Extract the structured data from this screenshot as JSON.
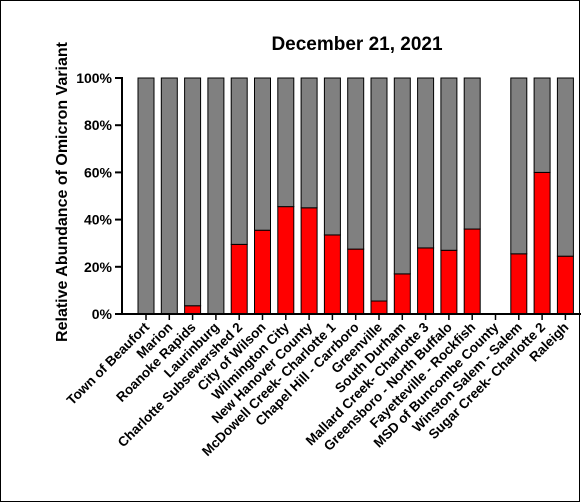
{
  "chart_data": {
    "type": "bar",
    "stacked": true,
    "title": "December 21, 2021",
    "xlabel": "",
    "ylabel": "Relative Abundance of Omicron Variant",
    "ylim": [
      0,
      100
    ],
    "yticks": [
      "0%",
      "20%",
      "40%",
      "60%",
      "80%",
      "100%"
    ],
    "ytick_values": [
      0,
      20,
      40,
      60,
      80,
      100
    ],
    "categories": [
      "Town of Beaufort",
      "Marion",
      "Roanoke Rapids",
      "Laurinburg",
      "Charlotte Subsewershed 2",
      "City of Wilson",
      "Wilmington City",
      "New Hanover County",
      "McDowell Creek- Charlotte 1",
      "Chapel Hill - Carrboro",
      "Greenville",
      "South Durham",
      "Mallard Creek- Charlotte 3",
      "Greensboro - North Buffalo",
      "Fayetteville - Rockfish",
      "MSD of Buncombe County",
      "Winston Salem - Salem",
      "Sugar Creek- Charlotte 2",
      "Raleigh"
    ],
    "series": [
      {
        "color": "#ff0000",
        "values": [
          0,
          0,
          3.5,
          0,
          29.5,
          35.5,
          45.5,
          45,
          33.5,
          27.5,
          5.5,
          17,
          28,
          27,
          36,
          0,
          25.5,
          60,
          24.5
        ]
      },
      {
        "color": "#808080",
        "values": [
          100,
          100,
          96.5,
          100,
          70.5,
          64.5,
          54.5,
          55,
          66.5,
          72.5,
          94.5,
          83,
          72,
          73,
          64,
          0,
          74.5,
          40,
          75.5
        ]
      }
    ],
    "grid": false,
    "legend": "none"
  }
}
